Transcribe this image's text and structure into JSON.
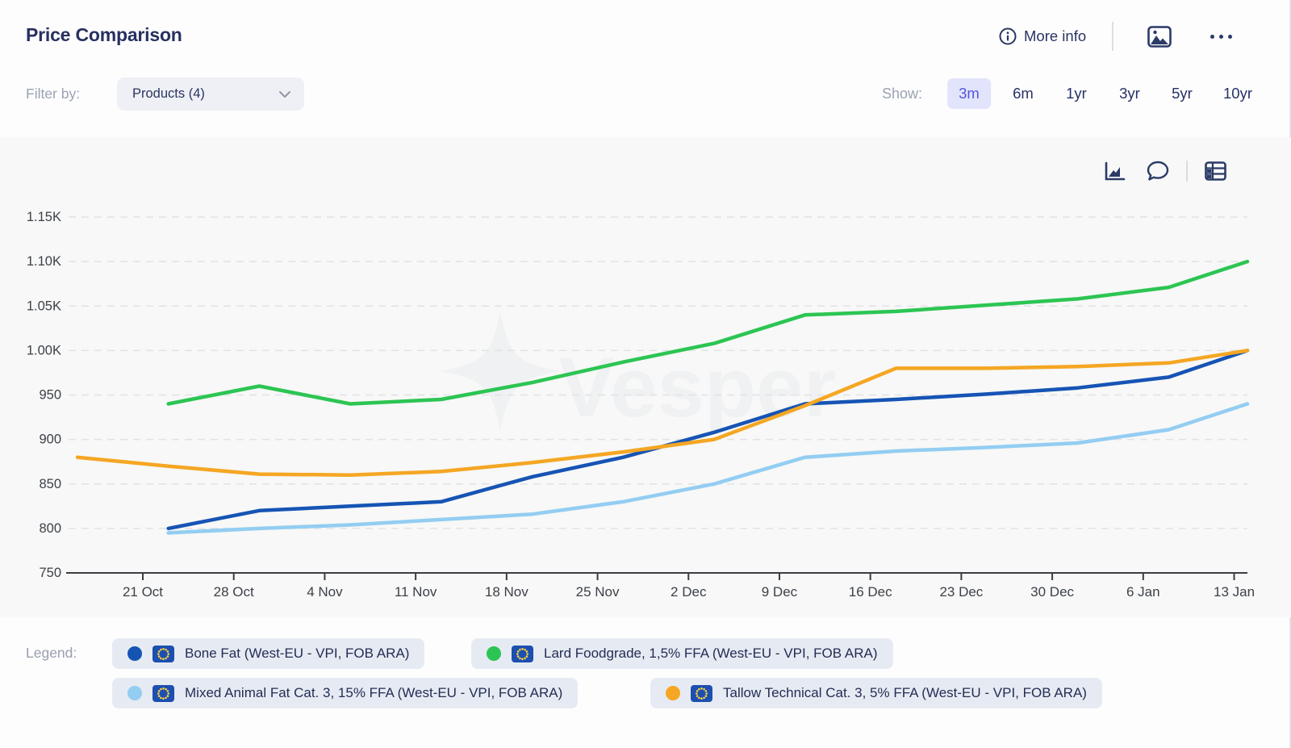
{
  "header": {
    "title": "Price Comparison",
    "more_info_label": "More info",
    "icons": [
      "info-icon",
      "image-icon",
      "ellipsis-icon"
    ]
  },
  "filter": {
    "label": "Filter by:",
    "dropdown_value": "Products (4)",
    "dropdown_icon": "chevron-down-icon"
  },
  "show": {
    "label": "Show:",
    "options": [
      "3m",
      "6m",
      "1yr",
      "3yr",
      "5yr",
      "10yr"
    ],
    "selected": "3m",
    "selected_color": "#5458d8",
    "selected_bg": "#e2e4fb"
  },
  "toolbar_icons": [
    "area-chart-icon",
    "comment-icon",
    "table-icon"
  ],
  "watermark": "Vesper",
  "chart_data": {
    "type": "line",
    "x": [
      "16 Oct",
      "23 Oct",
      "30 Oct",
      "6 Nov",
      "13 Nov",
      "20 Nov",
      "27 Nov",
      "4 Dec",
      "11 Dec",
      "18 Dec",
      "25 Dec",
      "1 Jan",
      "8 Jan",
      "15 Jan"
    ],
    "x_tick_labels": [
      "21 Oct",
      "28 Oct",
      "4 Nov",
      "11 Nov",
      "18 Nov",
      "25 Nov",
      "2 Dec",
      "9 Dec",
      "16 Dec",
      "23 Dec",
      "30 Dec",
      "6 Jan",
      "13 Jan"
    ],
    "y_tick_values": [
      1150,
      1100,
      1050,
      1000,
      950,
      900,
      850,
      800,
      750
    ],
    "y_tick_labels": [
      "1.15K",
      "1.10K",
      "1.05K",
      "1.00K",
      "950",
      "900",
      "850",
      "800",
      "750"
    ],
    "ylim": [
      750,
      1150
    ],
    "grid": "dashed-horizontal",
    "legend_position": "bottom",
    "series": [
      {
        "name": "Bone Fat (West-EU - VPI, FOB ARA)",
        "color": "#1654b4",
        "values": [
          null,
          800,
          820,
          825,
          830,
          858,
          880,
          908,
          940,
          945,
          951,
          958,
          970,
          1000
        ]
      },
      {
        "name": "Lard Foodgrade, 1,5% FFA (West-EU - VPI, FOB ARA)",
        "color": "#2cc553",
        "values": [
          null,
          940,
          960,
          940,
          945,
          964,
          987,
          1008,
          1040,
          1044,
          1051,
          1058,
          1071,
          1100
        ]
      },
      {
        "name": "Mixed Animal Fat Cat. 3, 15% FFA (West-EU - VPI, FOB ARA)",
        "color": "#93cdf2",
        "values": [
          null,
          795,
          800,
          804,
          810,
          816,
          830,
          850,
          880,
          887,
          891,
          896,
          911,
          940
        ]
      },
      {
        "name": "Tallow Technical Cat. 3, 5% FFA (West-EU - VPI, FOB ARA)",
        "color": "#f5a623",
        "values": [
          880,
          870,
          861,
          860,
          864,
          874,
          886,
          900,
          938,
          980,
          980,
          982,
          986,
          1000
        ]
      }
    ]
  },
  "legend": {
    "label": "Legend:",
    "items": [
      {
        "label": "Bone Fat (West-EU - VPI, FOB ARA)",
        "color": "#1654b4",
        "flag": "eu-flag-icon"
      },
      {
        "label": "Lard Foodgrade, 1,5% FFA (West-EU - VPI, FOB ARA)",
        "color": "#2cc553",
        "flag": "eu-flag-icon"
      },
      {
        "label": "Mixed Animal Fat Cat. 3, 15% FFA (West-EU - VPI, FOB ARA)",
        "color": "#93cdf2",
        "flag": "eu-flag-icon"
      },
      {
        "label": "Tallow Technical Cat. 3, 5% FFA (West-EU - VPI, FOB ARA)",
        "color": "#f5a623",
        "flag": "eu-flag-icon"
      }
    ]
  },
  "colors": {
    "title_text": "#27305f",
    "muted_label": "#9aa2b2",
    "chart_background": "#f7f8f7",
    "gridline": "#e1e2e4",
    "axis": "#3b3d42",
    "tick_label": "#3d4149",
    "pill_background": "#e6ebf3",
    "eu_flag_blue": "#1c4fb0",
    "eu_flag_star": "#ffd23e",
    "icon_navy": "#2b3a67"
  }
}
